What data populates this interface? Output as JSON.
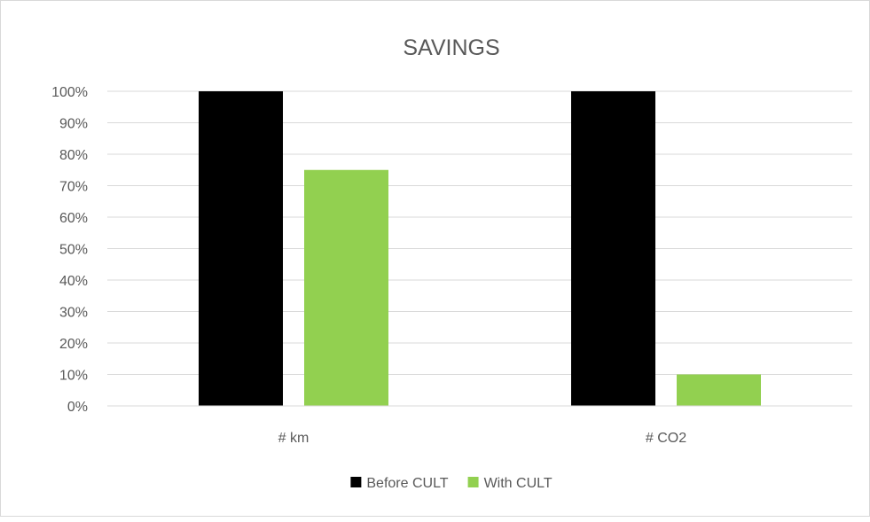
{
  "chart_data": {
    "type": "bar",
    "title": "SAVINGS",
    "categories": [
      "# km",
      "# CO2"
    ],
    "series": [
      {
        "name": "Before CULT",
        "values": [
          100,
          100
        ],
        "color": "#000000"
      },
      {
        "name": "With CULT",
        "values": [
          75,
          10
        ],
        "color": "#92d050"
      }
    ],
    "ylim": [
      0,
      100
    ],
    "yticks": [
      "0%",
      "10%",
      "20%",
      "30%",
      "40%",
      "50%",
      "60%",
      "70%",
      "80%",
      "90%",
      "100%"
    ],
    "grid": true,
    "legend": "bottom",
    "gridColor": "#d9d9d9",
    "textColor": "#595959"
  }
}
